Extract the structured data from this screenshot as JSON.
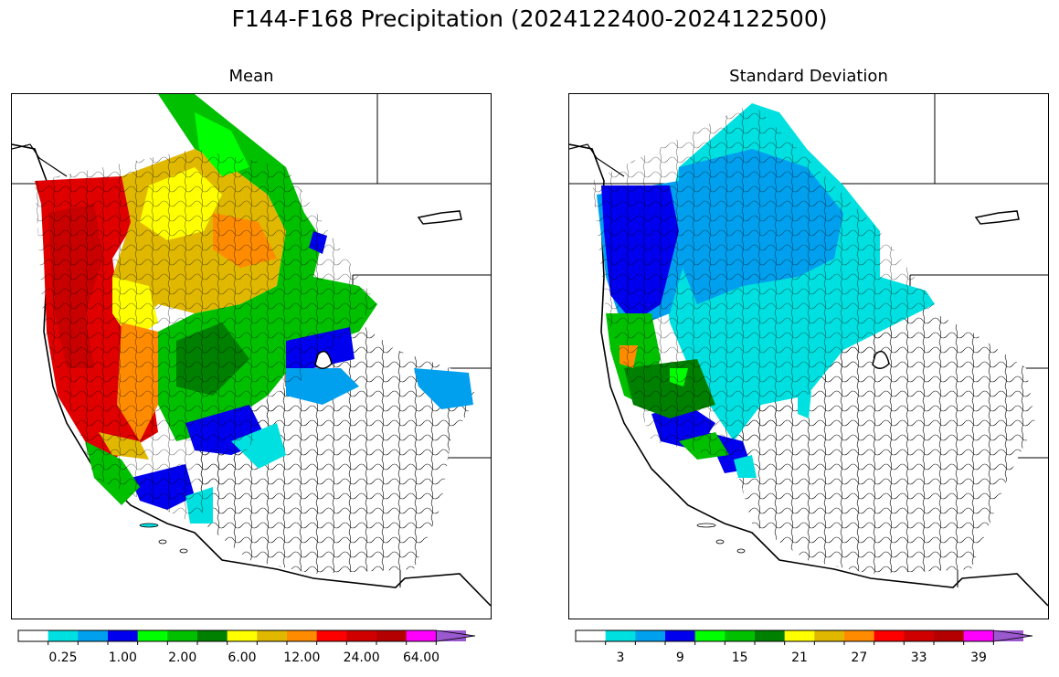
{
  "title": "F144-F168 Precipitation (2024122400-2024122500)",
  "panels": [
    {
      "title": "Mean",
      "colorbar": {
        "colors": [
          "#ffffff",
          "#00e0e0",
          "#00a0ee",
          "#0000ee",
          "#00ff00",
          "#00c000",
          "#008000",
          "#ffff00",
          "#e0b800",
          "#ff8c00",
          "#ff0000",
          "#d00000",
          "#b40000",
          "#ff00ff",
          "#9b59d0"
        ],
        "tick_labels": [
          "0.25",
          "1.00",
          "2.00",
          "6.00",
          "12.00",
          "24.00",
          "64.00"
        ],
        "tick_after_bin": [
          1,
          3,
          5,
          7,
          9,
          11,
          13
        ],
        "extend": "max"
      }
    },
    {
      "title": "Standard Deviation",
      "colorbar": {
        "colors": [
          "#ffffff",
          "#00e0e0",
          "#00a0ee",
          "#0000ee",
          "#00ff00",
          "#00c000",
          "#008000",
          "#ffff00",
          "#e0b800",
          "#ff8c00",
          "#ff0000",
          "#d00000",
          "#b40000",
          "#ff00ff",
          "#9b59d0"
        ],
        "tick_labels": [
          "3",
          "9",
          "15",
          "21",
          "27",
          "33",
          "39"
        ],
        "tick_after_bin": [
          1,
          3,
          5,
          7,
          9,
          11,
          13
        ],
        "extend": "max"
      }
    }
  ]
}
